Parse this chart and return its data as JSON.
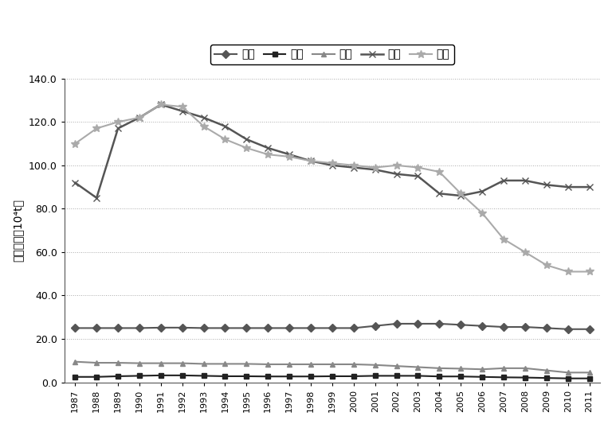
{
  "years": [
    1987,
    1988,
    1989,
    1990,
    1991,
    1992,
    1993,
    1994,
    1995,
    1996,
    1997,
    1998,
    1999,
    2000,
    2001,
    2002,
    2003,
    2004,
    2005,
    2006,
    2007,
    2008,
    2009,
    2010,
    2011
  ],
  "haiyv": [
    25.0,
    25.0,
    25.0,
    25.0,
    25.2,
    25.2,
    25.0,
    25.0,
    25.0,
    25.0,
    25.0,
    25.0,
    25.0,
    25.0,
    26.0,
    27.0,
    27.0,
    27.0,
    26.5,
    26.0,
    25.5,
    25.5,
    25.0,
    24.5,
    24.5
  ],
  "danshui": [
    2.5,
    2.5,
    2.8,
    3.0,
    3.2,
    3.2,
    3.0,
    2.8,
    2.8,
    2.7,
    2.7,
    2.7,
    2.8,
    2.8,
    3.0,
    3.0,
    3.0,
    2.7,
    2.7,
    2.5,
    2.3,
    2.2,
    2.0,
    1.8,
    1.8
  ],
  "tantu": [
    9.5,
    9.0,
    9.0,
    8.8,
    8.8,
    8.8,
    8.5,
    8.5,
    8.5,
    8.3,
    8.3,
    8.3,
    8.3,
    8.3,
    8.0,
    7.5,
    7.0,
    6.5,
    6.3,
    6.0,
    6.5,
    6.5,
    5.5,
    4.5,
    4.5
  ],
  "senlin": [
    92,
    85,
    117,
    122,
    128,
    125,
    122,
    118,
    112,
    108,
    105,
    102,
    100,
    99,
    98,
    96,
    95,
    87,
    86,
    88,
    93,
    93,
    91,
    90,
    90
  ],
  "nongtian": [
    110,
    117,
    120,
    122,
    128,
    127,
    118,
    112,
    108,
    105,
    104,
    102,
    101,
    100,
    99,
    100,
    99,
    97,
    87,
    78,
    66,
    60,
    54,
    51,
    51
  ],
  "ylabel": "碳吸收量（10⁴t）",
  "legend_labels": [
    "海域",
    "淡水",
    "滩涂",
    "森林",
    "农田"
  ],
  "ylim": [
    0,
    140
  ],
  "yticks": [
    0.0,
    20.0,
    40.0,
    60.0,
    80.0,
    100.0,
    120.0,
    140.0
  ]
}
